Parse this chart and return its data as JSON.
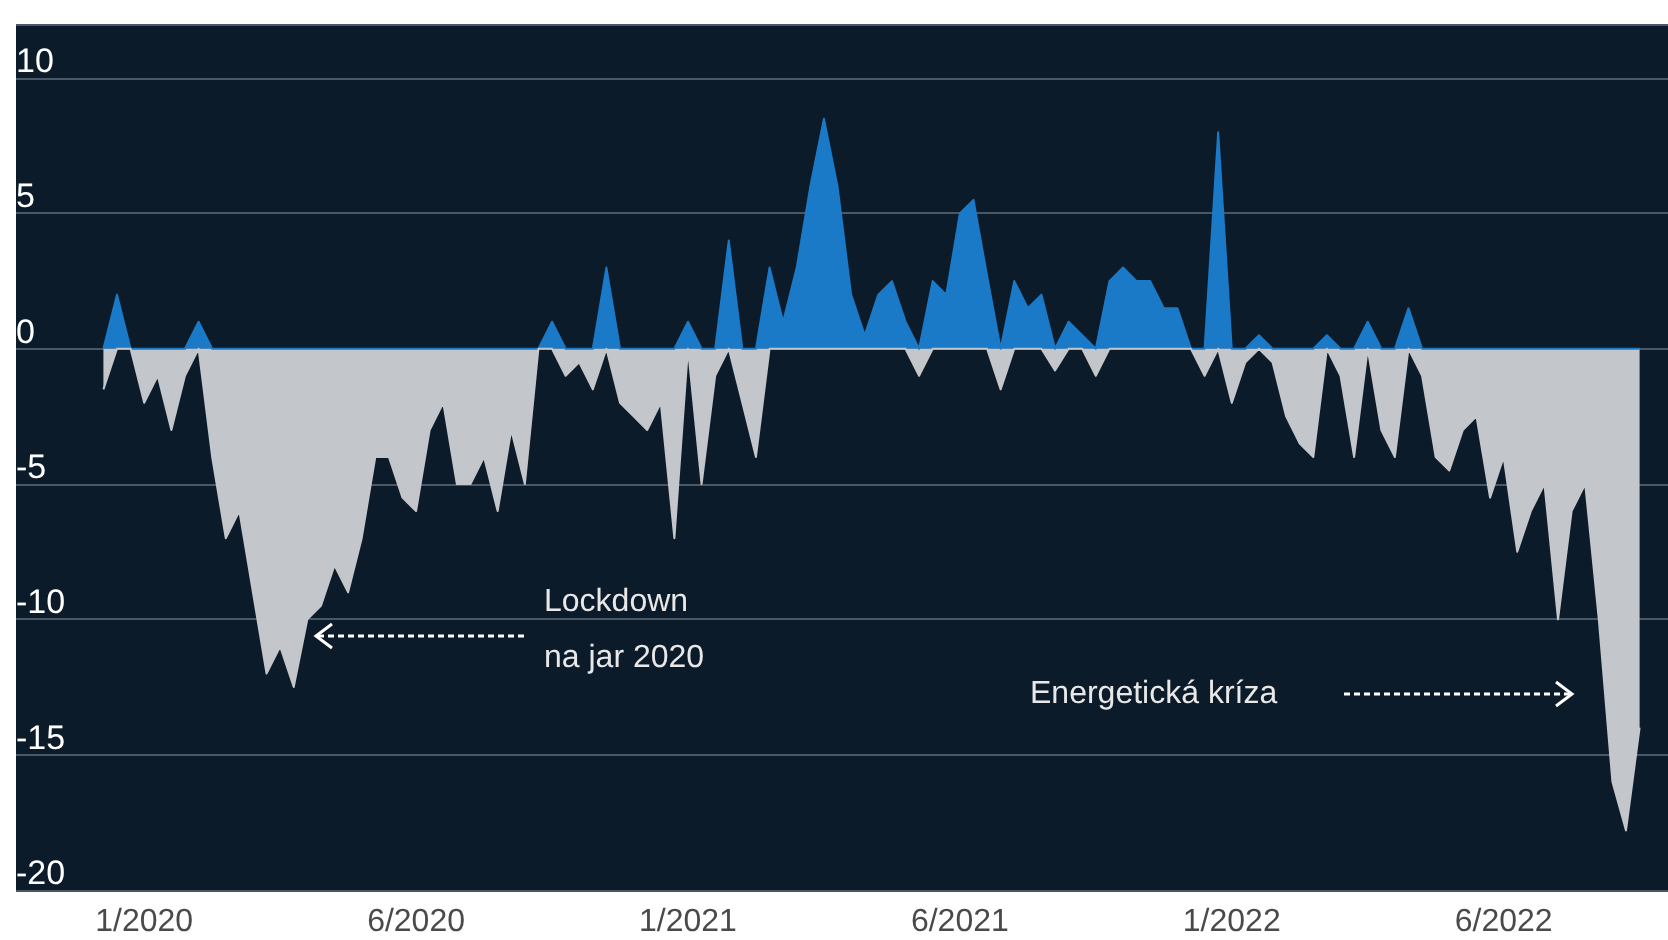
{
  "chart_data": {
    "type": "area",
    "categories": [
      null,
      null,
      null,
      "1/2020",
      null,
      null,
      null,
      null,
      null,
      null,
      null,
      null,
      null,
      null,
      null,
      null,
      null,
      null,
      null,
      null,
      null,
      null,
      null,
      "6/2020",
      null,
      null,
      null,
      null,
      null,
      null,
      null,
      null,
      null,
      null,
      null,
      null,
      null,
      null,
      null,
      null,
      null,
      null,
      null,
      "1/2021",
      null,
      null,
      null,
      null,
      null,
      null,
      null,
      null,
      null,
      null,
      null,
      null,
      null,
      null,
      null,
      null,
      null,
      null,
      null,
      "6/2021",
      null,
      null,
      null,
      null,
      null,
      null,
      null,
      null,
      null,
      null,
      null,
      null,
      null,
      null,
      null,
      null,
      null,
      null,
      null,
      "1/2022",
      null,
      null,
      null,
      null,
      null,
      null,
      null,
      null,
      null,
      null,
      null,
      null,
      null,
      null,
      null,
      null,
      null,
      null,
      null,
      "6/2022",
      null,
      null,
      null,
      null,
      null,
      null,
      null,
      null,
      null,
      null
    ],
    "series": [
      {
        "color": "#1a7ac8",
        "values": [
          0,
          2,
          0,
          0,
          0,
          0,
          0,
          1,
          0,
          0,
          0,
          0,
          0,
          0,
          0,
          0,
          0,
          0,
          0,
          0,
          0,
          0,
          0,
          0,
          0,
          0,
          0,
          0,
          0,
          0,
          0,
          0,
          0,
          1,
          0,
          0,
          0,
          3,
          0,
          0,
          0,
          0,
          0,
          1,
          0,
          0,
          4,
          0,
          0,
          3,
          1,
          3,
          6,
          8.5,
          6,
          2,
          0.5,
          2,
          2.5,
          1,
          0,
          2.5,
          2,
          5,
          5.5,
          2.7,
          0,
          2.5,
          1.5,
          2,
          0,
          1,
          0.5,
          0,
          2.5,
          3,
          2.5,
          2.5,
          1.5,
          1.5,
          0,
          0,
          8,
          0,
          0,
          0.5,
          0,
          0,
          0,
          0,
          0.5,
          0,
          0,
          1,
          0,
          0,
          1.5,
          0,
          0,
          0,
          0,
          0,
          0,
          0,
          0,
          0,
          0,
          0,
          0,
          0,
          0,
          0,
          0,
          0
        ]
      },
      {
        "color": "#c3c6ca",
        "values": [
          -1.5,
          0,
          0,
          -2,
          -1,
          -3,
          -1,
          0,
          -4,
          -7,
          -6,
          -9,
          -12,
          -11,
          -12.5,
          -10,
          -9.5,
          -8,
          -9,
          -7,
          -4,
          -4,
          -5.5,
          -6,
          -3,
          -2,
          -5,
          -5,
          -4,
          -6,
          -3,
          -5,
          0,
          0,
          -1,
          -0.5,
          -1.5,
          0,
          -2,
          -2.5,
          -3,
          -2,
          -7,
          0,
          -5,
          -1,
          0,
          -2,
          -4,
          0,
          0,
          0,
          0,
          0,
          0,
          0,
          0,
          0,
          0,
          0,
          -1,
          0,
          0,
          0,
          0,
          0,
          -1.5,
          0,
          0,
          0,
          -0.8,
          0,
          0,
          -1,
          0,
          0,
          0,
          0,
          0,
          0,
          0,
          -1,
          0,
          -2,
          -0.5,
          0,
          -0.5,
          -2.5,
          -3.5,
          -4,
          0,
          -1,
          -4,
          0,
          -3,
          -4,
          0,
          -1,
          -4,
          -4.5,
          -3,
          -2.5,
          -5.5,
          -4,
          -7.5,
          -6,
          -5,
          -10,
          -6,
          -5,
          -10,
          -16,
          -17.8,
          -14
        ]
      }
    ],
    "ylim": [
      -20,
      12
    ],
    "yticks": [
      -20,
      -15,
      -10,
      -5,
      0,
      5,
      10
    ],
    "grid": "y",
    "annotations": [
      "Lockdown\nna jar 2020",
      "Energetická kríza"
    ]
  }
}
